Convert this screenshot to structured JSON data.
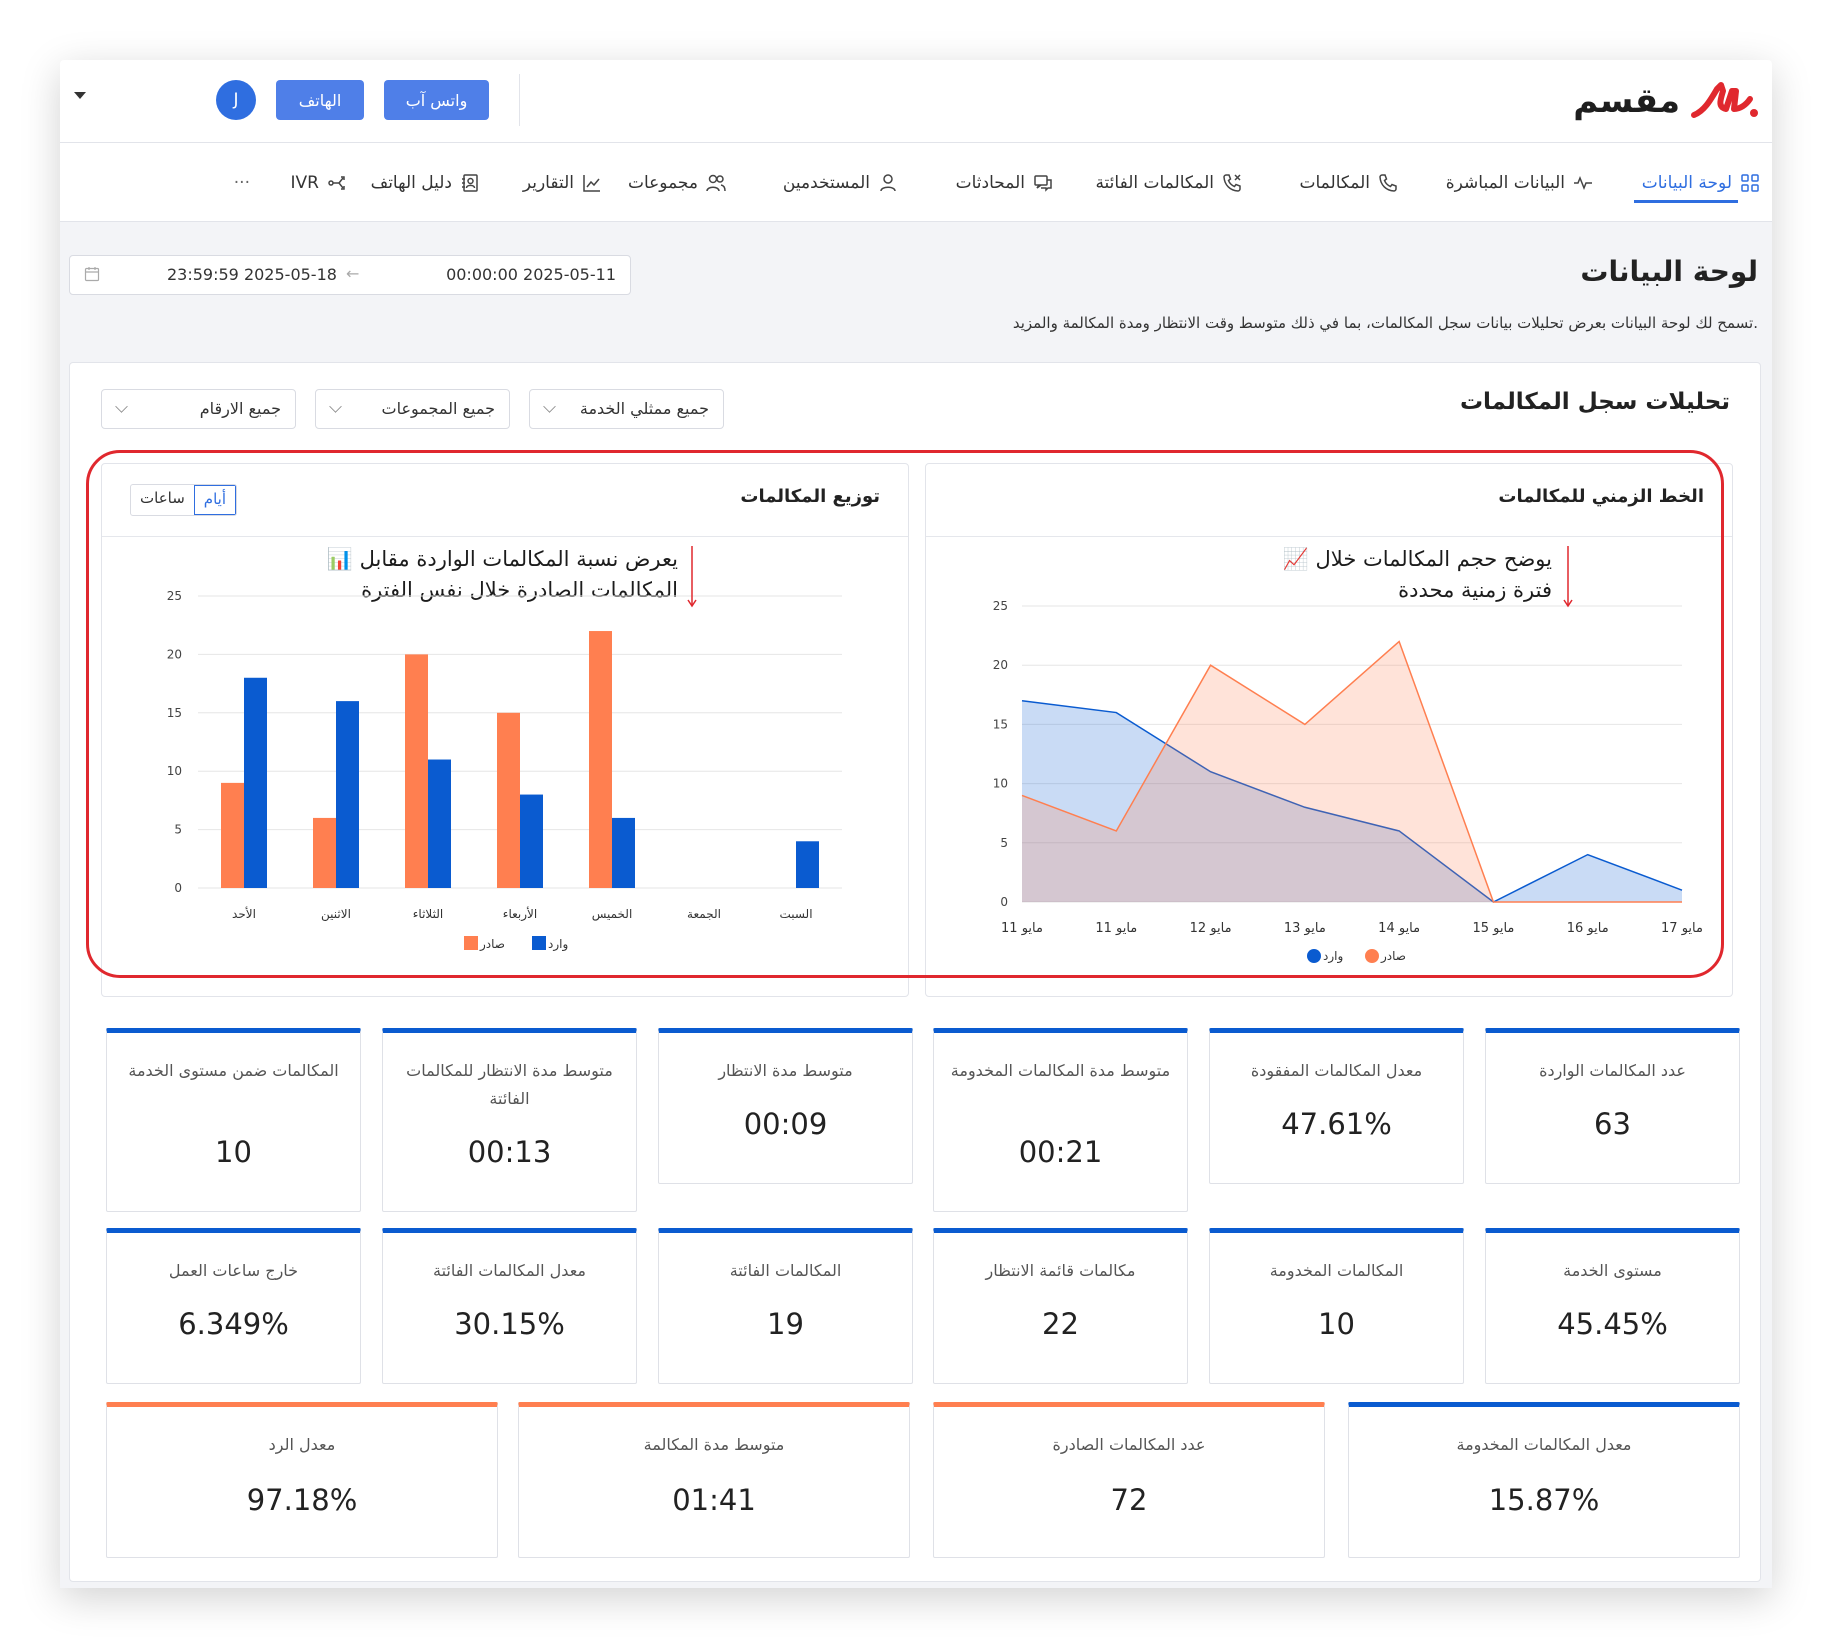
{
  "header": {
    "logo_text": "مقسم",
    "whatsapp_label": "واتس آب",
    "phone_label": "الهاتف",
    "avatar_initial": "J"
  },
  "nav": {
    "items": [
      {
        "label": "لوحة البيانات",
        "icon": "grid-icon",
        "active": true
      },
      {
        "label": "البيانات المباشرة",
        "icon": "activity-icon"
      },
      {
        "label": "المكالمات",
        "icon": "phone-icon"
      },
      {
        "label": "المكالمات الفائتة",
        "icon": "phone-missed-icon"
      },
      {
        "label": "المحادثات",
        "icon": "chat-icon"
      },
      {
        "label": "المستخدمين",
        "icon": "user-icon"
      },
      {
        "label": "مجموعات",
        "icon": "users-icon"
      },
      {
        "label": "التقارير",
        "icon": "chart-line-icon"
      },
      {
        "label": "دليل الهاتف",
        "icon": "contacts-icon"
      },
      {
        "label": "IVR",
        "icon": "share-icon"
      },
      {
        "label": "···",
        "icon": "more-icon"
      }
    ]
  },
  "page": {
    "title": "لوحة البيانات",
    "description": "تسمح لك لوحة البيانات بعرض تحليلات بيانات سجل المكالمات، بما في ذلك متوسط وقت الانتظار ومدة المكالمة والمزيد.",
    "date_from": "00:00:00 2025-05-11",
    "date_to": "23:59:59 2025-05-18",
    "date_arrow": "←"
  },
  "analytics": {
    "title": "تحليلات سجل المكالمات",
    "filters": {
      "agents": "جميع ممثلي الخدمة",
      "groups": "جميع المجموعات",
      "numbers": "جميع الارقام"
    }
  },
  "timeline_card": {
    "title": "الخط الزمني للمكالمات",
    "annotation_line1": "📈 يوضح حجم المكالمات خلال",
    "annotation_line2": "فترة زمنية محددة"
  },
  "distribution_card": {
    "title": "توزيع المكالمات",
    "toggle_days": "أيام",
    "toggle_hours": "ساعات",
    "annotation_line1": "📊 يعرض نسبة المكالمات الواردة مقابل",
    "annotation_line2": "المكالمات الصادرة خلال نفس الفترة"
  },
  "colors": {
    "incoming": "#0a5bd0",
    "outgoing": "#ff7f50",
    "accent": "#2f6ee0",
    "highlight_ring": "#e0282e"
  },
  "chart_data": [
    {
      "type": "area",
      "categories": [
        "مايو 11",
        "مايو 11",
        "مايو 12",
        "مايو 13",
        "مايو 14",
        "مايو 15",
        "مايو 16",
        "مايو 17"
      ],
      "series": [
        {
          "name": "وارد",
          "values": [
            17,
            16,
            11,
            8,
            6,
            0,
            4,
            1
          ],
          "color": "#0a5bd0"
        },
        {
          "name": "صادر",
          "values": [
            9,
            6,
            20,
            15,
            22,
            0,
            0,
            0
          ],
          "color": "#ff7f50"
        }
      ],
      "ylim": [
        0,
        25
      ],
      "yticks": [
        0,
        5,
        10,
        15,
        20,
        25
      ],
      "grid": true,
      "legend": "bottom"
    },
    {
      "type": "bar",
      "categories": [
        "الأحد",
        "الاثنين",
        "الثلاثاء",
        "الأربعاء",
        "الخميس",
        "الجمعة",
        "السبت"
      ],
      "series": [
        {
          "name": "صادر",
          "values": [
            9,
            6,
            20,
            15,
            22,
            0,
            0
          ],
          "color": "#ff7f50"
        },
        {
          "name": "وارد",
          "values": [
            18,
            16,
            11,
            8,
            6,
            0,
            4
          ],
          "color": "#0a5bd0"
        }
      ],
      "ylim": [
        0,
        25
      ],
      "yticks": [
        0,
        5,
        10,
        15,
        20,
        25
      ],
      "grid": true,
      "legend": "bottom"
    }
  ],
  "stats": [
    {
      "label": "عدد المكالمات الواردة",
      "value": "63"
    },
    {
      "label": "معدل المكالمات المفقودة",
      "value": "47.61%"
    },
    {
      "label": "متوسط مدة المكالمات المخدومة",
      "value": "00:21"
    },
    {
      "label": "متوسط مدة الانتظار",
      "value": "00:09"
    },
    {
      "label": "متوسط مدة الانتظار للمكالمات الفائتة",
      "value": "00:13"
    },
    {
      "label": "المكالمات ضمن مستوى الخدمة",
      "value": "10"
    },
    {
      "label": "مستوى الخدمة",
      "value": "45.45%"
    },
    {
      "label": "المكالمات المخدومة",
      "value": "10"
    },
    {
      "label": "مكالمات قائمة الانتظار",
      "value": "22"
    },
    {
      "label": "المكالمات الفائتة",
      "value": "19"
    },
    {
      "label": "معدل المكالمات الفائتة",
      "value": "30.15%"
    },
    {
      "label": "خارج ساعات العمل",
      "value": "6.349%"
    },
    {
      "label": "معدل المكالمات المخدومة",
      "value": "15.87%"
    },
    {
      "label": "عدد المكالمات الصادرة",
      "value": "72"
    },
    {
      "label": "متوسط مدة المكالمة",
      "value": "01:41"
    },
    {
      "label": "معدل الرد",
      "value": "97.18%"
    }
  ]
}
